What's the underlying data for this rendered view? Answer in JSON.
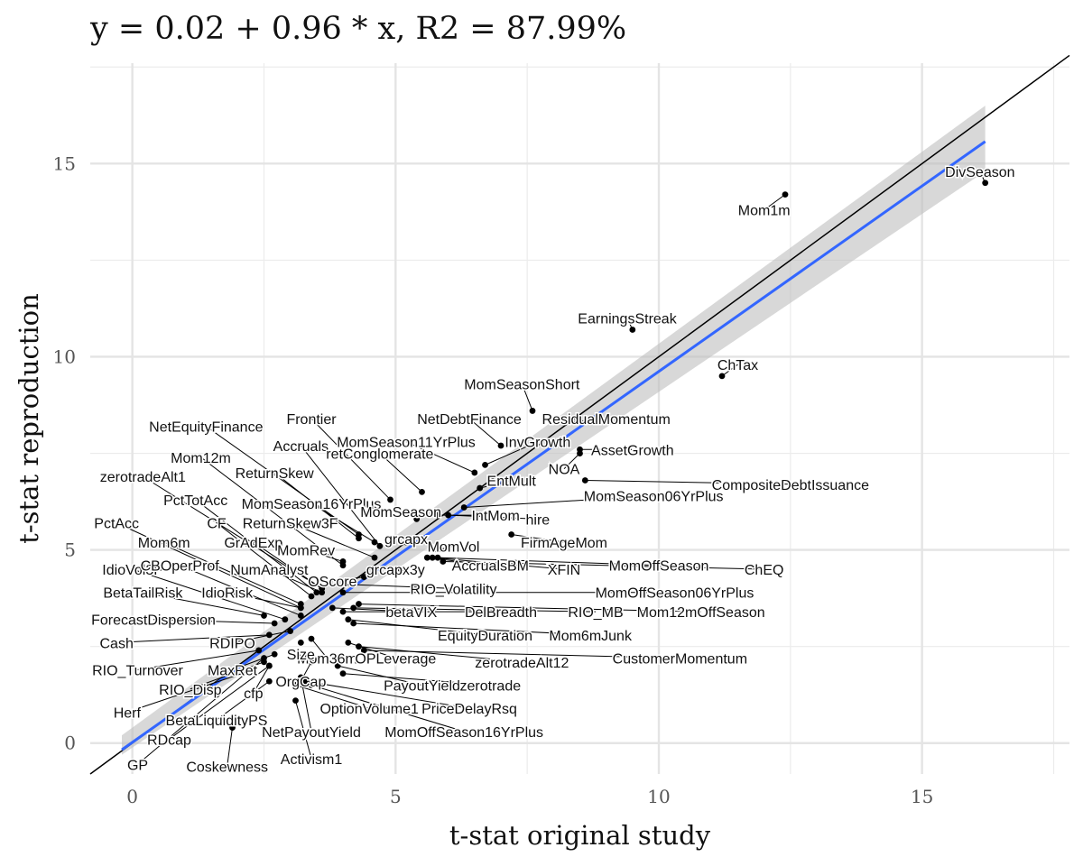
{
  "chart_data": {
    "type": "scatter",
    "title": "y = 0.02 + 0.96 * x, R2 = 87.99%",
    "xlabel": "t-stat original study",
    "ylabel": "t-stat reproduction",
    "xlim": [
      -0.8,
      17.8
    ],
    "ylim": [
      -0.8,
      17.6
    ],
    "x_ticks": [
      0,
      5,
      10,
      15
    ],
    "y_ticks": [
      0,
      5,
      10,
      15
    ],
    "x_tick_labels": [
      "0",
      "5",
      "10",
      "15"
    ],
    "y_tick_labels": [
      "0",
      "5",
      "10",
      "15"
    ],
    "grid": true,
    "fit_line": {
      "intercept": 0.02,
      "slope": 0.96,
      "x_range": [
        -0.2,
        16.2
      ],
      "color": "#3366FF"
    },
    "confidence_band": {
      "color": "#BEBEBE",
      "start": [
        -0.2,
        -0.3,
        0.2
      ],
      "end": [
        16.2,
        14.8,
        16.5
      ]
    },
    "identity_line": {
      "intercept": 0,
      "slope": 1,
      "color": "#000000"
    },
    "points": [
      {
        "label": "DivSeason",
        "x": 16.2,
        "y": 14.5,
        "lx": 16.1,
        "ly": 14.8
      },
      {
        "label": "Mom1m",
        "x": 12.4,
        "y": 14.2,
        "lx": 12.0,
        "ly": 13.8
      },
      {
        "label": "EarningsStreak",
        "x": 9.5,
        "y": 10.7,
        "lx": 9.4,
        "ly": 11.0
      },
      {
        "label": "ChTax",
        "x": 11.2,
        "y": 9.5,
        "lx": 11.5,
        "ly": 9.8
      },
      {
        "label": "MomSeasonShort",
        "x": 7.6,
        "y": 8.6,
        "lx": 7.4,
        "ly": 9.3
      },
      {
        "label": "NetDebtFinance",
        "x": 7.0,
        "y": 7.7,
        "lx": 6.4,
        "ly": 8.4
      },
      {
        "label": "ResidualMomentum",
        "x": 8.2,
        "y": 8.3,
        "lx": 9.0,
        "ly": 8.4
      },
      {
        "label": "Frontier",
        "x": 4.9,
        "y": 6.3,
        "lx": 3.4,
        "ly": 8.4
      },
      {
        "label": "NetEquityFinance",
        "x": 4.3,
        "y": 5.4,
        "lx": 1.4,
        "ly": 8.2
      },
      {
        "label": "MomSeason11YrPlus",
        "x": 6.5,
        "y": 7.0,
        "lx": 5.2,
        "ly": 7.8
      },
      {
        "label": "InvGrowth",
        "x": 6.7,
        "y": 7.2,
        "lx": 7.7,
        "ly": 7.8
      },
      {
        "label": "AssetGrowth",
        "x": 8.5,
        "y": 7.6,
        "lx": 9.5,
        "ly": 7.6
      },
      {
        "label": "Accruals",
        "x": 4.7,
        "y": 5.1,
        "lx": 3.2,
        "ly": 7.7
      },
      {
        "label": "NOA",
        "x": 8.5,
        "y": 7.5,
        "lx": 8.2,
        "ly": 7.1
      },
      {
        "label": "Mom12m",
        "x": 4.0,
        "y": 4.6,
        "lx": 1.3,
        "ly": 7.4
      },
      {
        "label": "retConglomerate",
        "x": 5.5,
        "y": 6.5,
        "lx": 4.7,
        "ly": 7.5
      },
      {
        "label": "ReturnSkew",
        "x": 4.3,
        "y": 5.3,
        "lx": 2.7,
        "ly": 7.0
      },
      {
        "label": "EntMult",
        "x": 6.6,
        "y": 6.6,
        "lx": 7.2,
        "ly": 6.8
      },
      {
        "label": "zerotradeAlt1",
        "x": 3.6,
        "y": 4.0,
        "lx": 0.2,
        "ly": 6.9
      },
      {
        "label": "CompositeDebtIssuance",
        "x": 8.6,
        "y": 6.8,
        "lx": 12.5,
        "ly": 6.7
      },
      {
        "label": "MomSeason06YrPlus",
        "x": 6.3,
        "y": 6.1,
        "lx": 9.9,
        "ly": 6.4
      },
      {
        "label": "MomSeason16YrPlus",
        "x": 4.6,
        "y": 5.2,
        "lx": 3.4,
        "ly": 6.2
      },
      {
        "label": "PctTotAcc",
        "x": 3.5,
        "y": 3.9,
        "lx": 1.2,
        "ly": 6.3
      },
      {
        "label": "MomSeason",
        "x": 5.4,
        "y": 5.8,
        "lx": 5.1,
        "ly": 6.0
      },
      {
        "label": "IntMom",
        "x": 5.8,
        "y": 5.9,
        "lx": 6.9,
        "ly": 5.9
      },
      {
        "label": "hire",
        "x": 6.0,
        "y": 5.9,
        "lx": 7.7,
        "ly": 5.8
      },
      {
        "label": "PctAcc",
        "x": 3.2,
        "y": 3.5,
        "lx": -0.3,
        "ly": 5.7
      },
      {
        "label": "CF",
        "x": 3.4,
        "y": 3.8,
        "lx": 1.6,
        "ly": 5.7
      },
      {
        "label": "ReturnSkew3F",
        "x": 4.6,
        "y": 4.8,
        "lx": 3.0,
        "ly": 5.7
      },
      {
        "label": "grcapx",
        "x": 5.2,
        "y": 5.2,
        "lx": 5.2,
        "ly": 5.3
      },
      {
        "label": "FirmAgeMom",
        "x": 7.2,
        "y": 5.4,
        "lx": 8.2,
        "ly": 5.2
      },
      {
        "label": "Mom6m",
        "x": 3.2,
        "y": 3.6,
        "lx": 0.6,
        "ly": 5.2
      },
      {
        "label": "GrAdExp",
        "x": 3.6,
        "y": 4.0,
        "lx": 2.3,
        "ly": 5.2
      },
      {
        "label": "MomRev",
        "x": 4.0,
        "y": 4.7,
        "lx": 3.3,
        "ly": 5.0
      },
      {
        "label": "MomVol",
        "x": 5.8,
        "y": 5.0,
        "lx": 6.1,
        "ly": 5.1
      },
      {
        "label": "IdioVol3F",
        "x": 2.9,
        "y": 3.2,
        "lx": 0.0,
        "ly": 4.5
      },
      {
        "label": "CBOperProf",
        "x": 3.2,
        "y": 3.3,
        "lx": 0.9,
        "ly": 4.6
      },
      {
        "label": "NumAnalyst",
        "x": 3.6,
        "y": 3.9,
        "lx": 2.6,
        "ly": 4.5
      },
      {
        "label": "grcapx3y",
        "x": 5.1,
        "y": 4.5,
        "lx": 5.0,
        "ly": 4.5
      },
      {
        "label": "AccrualsBM",
        "x": 5.6,
        "y": 4.8,
        "lx": 6.8,
        "ly": 4.6
      },
      {
        "label": "XFIN",
        "x": 5.7,
        "y": 4.8,
        "lx": 8.2,
        "ly": 4.5
      },
      {
        "label": "MomOffSeason",
        "x": 5.8,
        "y": 4.8,
        "lx": 10.0,
        "ly": 4.6
      },
      {
        "label": "ChEQ",
        "x": 5.9,
        "y": 4.7,
        "lx": 12.0,
        "ly": 4.5
      },
      {
        "label": "OScore",
        "x": 4.4,
        "y": 4.3,
        "lx": 3.8,
        "ly": 4.2
      },
      {
        "label": "BetaTailRisk",
        "x": 2.5,
        "y": 3.3,
        "lx": 0.2,
        "ly": 3.9
      },
      {
        "label": "IdioRisk",
        "x": 3.2,
        "y": 3.5,
        "lx": 1.8,
        "ly": 3.9
      },
      {
        "label": "RIO_Volatility",
        "x": 4.2,
        "y": 4.1,
        "lx": 6.1,
        "ly": 4.0
      },
      {
        "label": "MomOffSeason06YrPlus",
        "x": 4.0,
        "y": 3.9,
        "lx": 10.3,
        "ly": 3.9
      },
      {
        "label": "ForecastDispersion",
        "x": 2.7,
        "y": 3.1,
        "lx": 0.4,
        "ly": 3.2
      },
      {
        "label": "betaVIX",
        "x": 3.8,
        "y": 3.5,
        "lx": 5.3,
        "ly": 3.4
      },
      {
        "label": "DelBreadth",
        "x": 4.0,
        "y": 3.4,
        "lx": 7.0,
        "ly": 3.4
      },
      {
        "label": "RIO_MB",
        "x": 4.2,
        "y": 3.5,
        "lx": 8.8,
        "ly": 3.4
      },
      {
        "label": "Mom12mOffSeason",
        "x": 4.3,
        "y": 3.6,
        "lx": 10.8,
        "ly": 3.4
      },
      {
        "label": "Cash",
        "x": 2.6,
        "y": 2.8,
        "lx": -0.3,
        "ly": 2.6
      },
      {
        "label": "RDIPO",
        "x": 3.0,
        "y": 2.9,
        "lx": 1.9,
        "ly": 2.6
      },
      {
        "label": "EquityDuration",
        "x": 4.1,
        "y": 3.2,
        "lx": 6.7,
        "ly": 2.8
      },
      {
        "label": "Mom6mJunk",
        "x": 4.2,
        "y": 3.1,
        "lx": 8.7,
        "ly": 2.8
      },
      {
        "label": "Mom36m",
        "x": 3.4,
        "y": 2.7,
        "lx": 3.7,
        "ly": 2.2
      },
      {
        "label": "OPLeverage",
        "x": 4.1,
        "y": 2.6,
        "lx": 5.0,
        "ly": 2.2
      },
      {
        "label": "zerotradeAlt12",
        "x": 4.3,
        "y": 2.5,
        "lx": 7.4,
        "ly": 2.1
      },
      {
        "label": "CustomerMomentum",
        "x": 4.4,
        "y": 2.4,
        "lx": 10.4,
        "ly": 2.2
      },
      {
        "label": "Size",
        "x": 3.2,
        "y": 2.6,
        "lx": 3.2,
        "ly": 2.3
      },
      {
        "label": "RIO_Turnover",
        "x": 2.4,
        "y": 2.4,
        "lx": 0.1,
        "ly": 1.9
      },
      {
        "label": "MaxRet",
        "x": 2.7,
        "y": 2.3,
        "lx": 1.9,
        "ly": 1.9
      },
      {
        "label": "OrgCap",
        "x": 3.4,
        "y": 2.1,
        "lx": 3.2,
        "ly": 1.6
      },
      {
        "label": "PayoutYield",
        "x": 3.9,
        "y": 2.0,
        "lx": 5.5,
        "ly": 1.5
      },
      {
        "label": "zerotrade",
        "x": 4.0,
        "y": 1.8,
        "lx": 6.8,
        "ly": 1.5
      },
      {
        "label": "RIO_Disp",
        "x": 2.5,
        "y": 2.1,
        "lx": 1.1,
        "ly": 1.4
      },
      {
        "label": "cfp",
        "x": 2.6,
        "y": 2.0,
        "lx": 2.3,
        "ly": 1.3
      },
      {
        "label": "OptionVolume1",
        "x": 3.1,
        "y": 1.5,
        "lx": 4.5,
        "ly": 0.9
      },
      {
        "label": "PriceDelayRsq",
        "x": 3.3,
        "y": 1.6,
        "lx": 6.4,
        "ly": 0.9
      },
      {
        "label": "Herf",
        "x": 2.3,
        "y": 1.9,
        "lx": -0.1,
        "ly": 0.8
      },
      {
        "label": "BetaLiquidityPS",
        "x": 2.6,
        "y": 1.6,
        "lx": 1.6,
        "ly": 0.6
      },
      {
        "label": "NetPayoutYield",
        "x": 3.2,
        "y": 1.7,
        "lx": 3.4,
        "ly": 0.3
      },
      {
        "label": "MomOffSeason16YrPlus",
        "x": 3.4,
        "y": 1.5,
        "lx": 6.3,
        "ly": 0.3
      },
      {
        "label": "RDcap",
        "x": 2.6,
        "y": 2.0,
        "lx": 0.7,
        "ly": 0.1
      },
      {
        "label": "Activism1",
        "x": 3.1,
        "y": 1.1,
        "lx": 3.4,
        "ly": -0.4
      },
      {
        "label": "Coskewness",
        "x": 1.9,
        "y": 0.4,
        "lx": 1.8,
        "ly": -0.6
      },
      {
        "label": "GP",
        "x": 2.5,
        "y": 2.2,
        "lx": 0.1,
        "ly": -0.55
      }
    ]
  }
}
